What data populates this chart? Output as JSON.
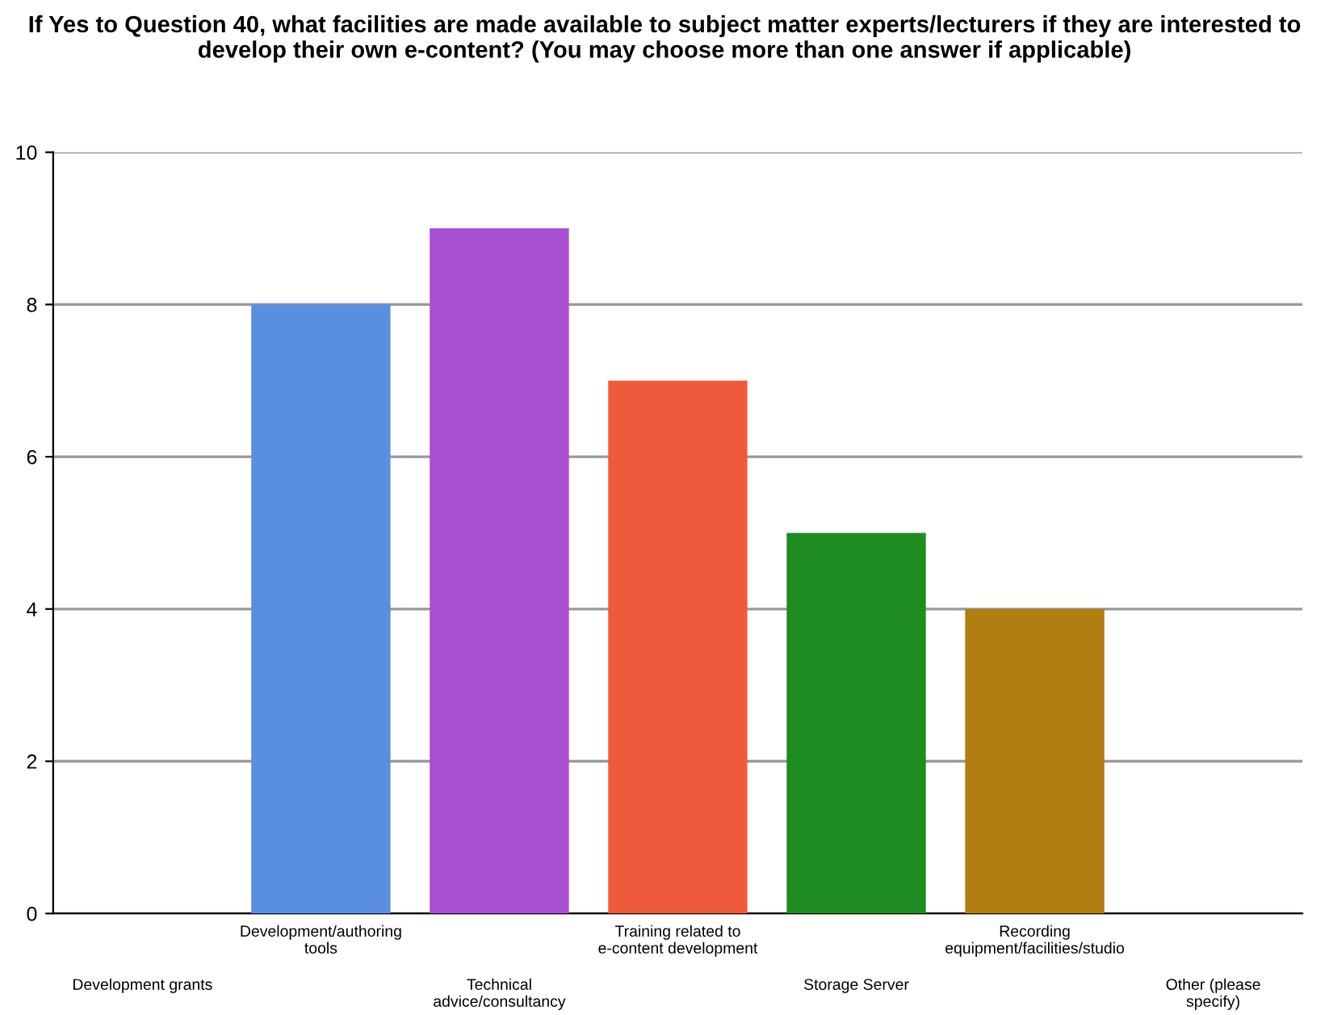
{
  "chart_data": {
    "type": "bar",
    "title": "If Yes to Question 40, what facilities are made available to subject matter experts/lecturers if they are interested to develop their own e-content? (You may choose more than one answer if applicable)",
    "categories": [
      "Development grants",
      "Development/authoring tools",
      "Technical advice/consultancy",
      "Training related to e-content development",
      "Storage Server",
      "Recording equipment/facilities/studio",
      "Other (please specify)"
    ],
    "values": [
      0,
      8,
      9,
      7,
      5,
      4,
      0
    ],
    "colors": [
      "#5a8ee0",
      "#5a8ee0",
      "#a84fd2",
      "#f05a3c",
      "#1f8c22",
      "#b07e10",
      "#888888"
    ],
    "ylim": [
      0,
      10
    ],
    "yticks": [
      0,
      2,
      4,
      6,
      8,
      10
    ],
    "grid": "y"
  }
}
